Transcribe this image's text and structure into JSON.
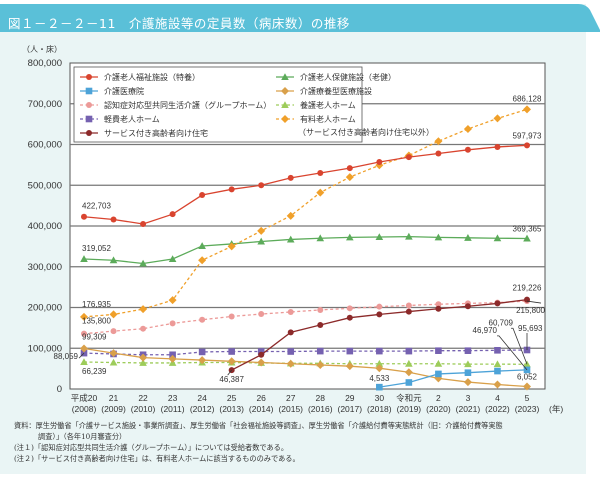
{
  "figure": {
    "title": "図１－２－２－11　介護施設等の定員数（病床数）の推移",
    "unit_label": "（人・床）",
    "notes": {
      "source_line1": "資料：厚生労働省「介護サービス施設・事業所調査」、厚生労働省「社会福祉施設等調査」、厚生労働省「介護給付費等実態統計（旧：介護給付費等実態",
      "source_line2": "調査）」（各年10月審査分）",
      "note1": "(注１)「認知症対応型共同生活介護（グループホーム）」については受給者数である。",
      "note2": "(注２)「サービス付き高齢者向け住宅」は、有料老人ホームに該当するもののみである。"
    }
  },
  "chart_data": {
    "type": "line",
    "title": "介護施設等の定員数（病床数）の推移",
    "ylabel": "（人・床）",
    "xlabel": "（年）",
    "ylim": [
      0,
      800000
    ],
    "yticks": [
      0,
      100000,
      200000,
      300000,
      400000,
      500000,
      600000,
      700000,
      800000
    ],
    "ytick_labels": [
      "0",
      "100,000",
      "200,000",
      "300,000",
      "400,000",
      "500,000",
      "600,000",
      "700,000",
      "800,000"
    ],
    "grid": true,
    "legend_position": "top-left",
    "categories": [
      {
        "era": "平成20",
        "year": "(2008)"
      },
      {
        "era": "21",
        "year": "(2009)"
      },
      {
        "era": "22",
        "year": "(2010)"
      },
      {
        "era": "23",
        "year": "(2011)"
      },
      {
        "era": "24",
        "year": "(2012)"
      },
      {
        "era": "25",
        "year": "(2013)"
      },
      {
        "era": "26",
        "year": "(2014)"
      },
      {
        "era": "27",
        "year": "(2015)"
      },
      {
        "era": "28",
        "year": "(2016)"
      },
      {
        "era": "29",
        "year": "(2017)"
      },
      {
        "era": "30",
        "year": "(2018)"
      },
      {
        "era": "令和元",
        "year": "(2019)"
      },
      {
        "era": "2",
        "year": "(2020)"
      },
      {
        "era": "3",
        "year": "(2021)"
      },
      {
        "era": "4",
        "year": "(2022)"
      },
      {
        "era": "5",
        "year": "(2023)"
      }
    ],
    "x_unit": "(年)",
    "series": [
      {
        "name": "介護老人福祉施設（特養）",
        "color": "#d9442f",
        "marker": "circle",
        "dashed": false,
        "values": [
          422703,
          416000,
          405000,
          429000,
          476000,
          490000,
          500000,
          518000,
          530000,
          542000,
          557000,
          569000,
          578000,
          587000,
          594000,
          597973
        ]
      },
      {
        "name": "介護老人保健施設（老健）",
        "color": "#5cab5a",
        "marker": "triangle",
        "dashed": false,
        "values": [
          319052,
          316000,
          308000,
          319000,
          351000,
          356000,
          362000,
          367000,
          370000,
          372000,
          373000,
          374000,
          372000,
          371000,
          370000,
          369365
        ]
      },
      {
        "name": "介護医療院",
        "color": "#4da3d8",
        "marker": "square",
        "dashed": false,
        "values": [
          null,
          null,
          null,
          null,
          null,
          null,
          null,
          null,
          null,
          null,
          4533,
          16000,
          37000,
          40000,
          44000,
          46970
        ]
      },
      {
        "name": "介護療養型医療施設",
        "color": "#d9a04a",
        "marker": "diamond",
        "dashed": false,
        "values": [
          99309,
          88000,
          77000,
          74000,
          71000,
          68000,
          65000,
          62000,
          59000,
          56000,
          51000,
          41000,
          26000,
          17000,
          11000,
          6052
        ]
      },
      {
        "name": "認知症対応型共同生活介護（グループホーム）",
        "color": "#ec9a98",
        "marker": "circle",
        "dashed": true,
        "values": [
          135800,
          142000,
          148000,
          161000,
          170000,
          178000,
          184000,
          189000,
          194000,
          198000,
          202000,
          205000,
          208000,
          210000,
          212000,
          215800
        ]
      },
      {
        "name": "養護老人ホーム",
        "color": "#9dcc5a",
        "marker": "triangle",
        "dashed": true,
        "values": [
          66239,
          65000,
          64000,
          64000,
          65000,
          65000,
          64000,
          63000,
          63000,
          62000,
          62000,
          62000,
          62000,
          61000,
          61000,
          60709
        ]
      },
      {
        "name": "軽費老人ホーム",
        "color": "#7561b0",
        "marker": "square",
        "dashed": true,
        "values": [
          88059,
          86000,
          84000,
          84000,
          91000,
          92000,
          92000,
          92000,
          93000,
          93000,
          93000,
          93000,
          94000,
          94000,
          95000,
          95693
        ]
      },
      {
        "name": "有料老人ホーム（サービス付き高齢者向け住宅以外）",
        "color": "#f0a02a",
        "marker": "diamond",
        "dashed": true,
        "values": [
          176935,
          183000,
          196000,
          218000,
          316000,
          350000,
          388000,
          425000,
          482000,
          520000,
          549000,
          573000,
          608000,
          638000,
          664000,
          686128
        ]
      },
      {
        "name": "サービス付き高齢者向け住宅",
        "color": "#8c2a2a",
        "marker": "circle",
        "dashed": false,
        "values": [
          null,
          null,
          null,
          null,
          null,
          46387,
          84000,
          139000,
          157000,
          175000,
          183000,
          190000,
          197000,
          203000,
          210000,
          219226
        ]
      }
    ],
    "legend": [
      {
        "label": "介護老人福祉施設（特養）",
        "series": 0
      },
      {
        "label": "介護老人保健施設（老健）",
        "series": 1
      },
      {
        "label": "介護医療院",
        "series": 2
      },
      {
        "label": "介護療養型医療施設",
        "series": 3
      },
      {
        "label": "認知症対応型共同生活介護（グループホーム）",
        "series": 4
      },
      {
        "label": "養護老人ホーム",
        "series": 5
      },
      {
        "label": "軽費老人ホーム",
        "series": 6
      },
      {
        "label": "有料老人ホーム",
        "label2": "（サービス付き高齢者向け住宅以外）",
        "series": 7
      },
      {
        "label": "サービス付き高齢者向け住宅",
        "series": 8
      }
    ],
    "annotations": [
      {
        "text": "422,703",
        "series": 0,
        "point": 0
      },
      {
        "text": "319,052",
        "series": 1,
        "point": 0
      },
      {
        "text": "176,935",
        "series": 7,
        "point": 0
      },
      {
        "text": "135,800",
        "series": 4,
        "point": 0
      },
      {
        "text": "99,309",
        "series": 3,
        "point": 0
      },
      {
        "text": "88,059",
        "series": 6,
        "point": 0
      },
      {
        "text": "66,239",
        "series": 5,
        "point": 0
      },
      {
        "text": "46,387",
        "series": 8,
        "point": 5
      },
      {
        "text": "4,533",
        "series": 2,
        "point": 10
      },
      {
        "text": "686,128",
        "series": 7,
        "point": 15
      },
      {
        "text": "597,973",
        "series": 0,
        "point": 15
      },
      {
        "text": "369,365",
        "series": 1,
        "point": 15
      },
      {
        "text": "219,226",
        "series": 8,
        "point": 15
      },
      {
        "text": "215,800",
        "series": 4,
        "point": 15
      },
      {
        "text": "95,693",
        "series": 6,
        "point": 15
      },
      {
        "text": "60,709",
        "series": 5,
        "point": 15
      },
      {
        "text": "46,970",
        "series": 2,
        "point": 15
      },
      {
        "text": "6,052",
        "series": 3,
        "point": 15
      }
    ]
  }
}
